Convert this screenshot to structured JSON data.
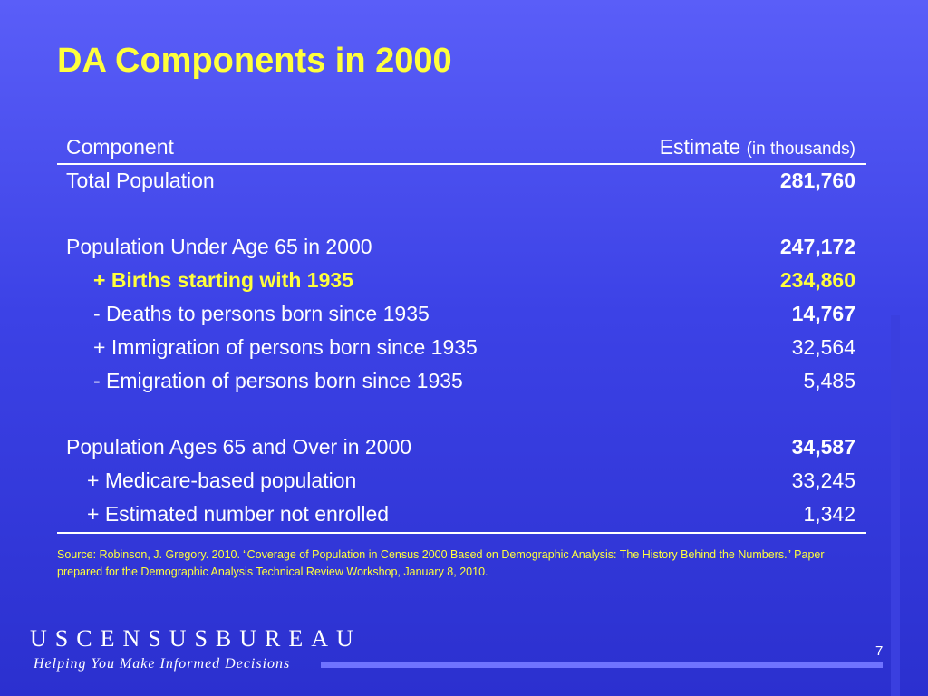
{
  "title": "DA Components in 2000",
  "table": {
    "header": {
      "component": "Component",
      "estimate": "Estimate",
      "unit": "(in thousands)"
    },
    "rows": [
      {
        "label": "Total Population",
        "value": "281,760"
      },
      {
        "label": "Population Under Age 65 in 2000",
        "value": "247,172"
      },
      {
        "label": "+ Births starting with 1935",
        "value": "234,860"
      },
      {
        "label": "- Deaths to persons born since 1935",
        "value": "14,767"
      },
      {
        "label": "+ Immigration of persons born since 1935",
        "value": "32,564"
      },
      {
        "label": "- Emigration of persons born since 1935",
        "value": "5,485"
      },
      {
        "label": "Population Ages 65 and Over in 2000",
        "value": "34,587"
      },
      {
        "label": "+ Medicare-based population",
        "value": "33,245"
      },
      {
        "label": "+ Estimated number not enrolled",
        "value": "1,342"
      }
    ]
  },
  "source": "Source: Robinson, J. Gregory. 2010. “Coverage of Population in Census 2000 Based on Demographic Analysis:  The History Behind the Numbers.”  Paper prepared for the Demographic Analysis Technical Review Workshop, January 8, 2010.",
  "footer": {
    "brand": "USCENSUSBUREAU",
    "tagline": "Helping You Make Informed Decisions",
    "page_number": "7"
  },
  "colors": {
    "background": "#3c42e6",
    "accent": "#ffff3c",
    "text": "#ffffff"
  }
}
